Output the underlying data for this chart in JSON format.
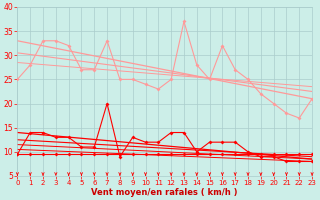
{
  "xlabel": "Vent moyen/en rafales ( km/h )",
  "xlim": [
    0,
    23
  ],
  "ylim": [
    5,
    40
  ],
  "yticks": [
    5,
    10,
    15,
    20,
    25,
    30,
    35,
    40
  ],
  "xticks": [
    0,
    1,
    2,
    3,
    4,
    5,
    6,
    7,
    8,
    9,
    10,
    11,
    12,
    13,
    14,
    15,
    16,
    17,
    18,
    19,
    20,
    21,
    22,
    23
  ],
  "background_color": "#cceee8",
  "grid_color": "#aacccc",
  "series_rafales": {
    "x": [
      0,
      1,
      2,
      3,
      4,
      5,
      6,
      7,
      8,
      9,
      10,
      11,
      12,
      13,
      14,
      15,
      16,
      17,
      18,
      19,
      20,
      21,
      22,
      23
    ],
    "y": [
      25,
      28,
      33,
      33,
      32,
      27,
      27,
      33,
      25,
      25,
      24,
      23,
      25,
      37,
      28,
      25,
      32,
      27,
      25,
      22,
      20,
      18,
      17,
      21
    ],
    "color": "#ff9999",
    "linewidth": 0.8,
    "markersize": 2.0
  },
  "trend_rafales1": {
    "x": [
      0,
      23
    ],
    "y": [
      33,
      21
    ],
    "color": "#ff9999",
    "linewidth": 0.9
  },
  "trend_rafales2": {
    "x": [
      0,
      23
    ],
    "y": [
      30.5,
      22.5
    ],
    "color": "#ff9999",
    "linewidth": 0.8
  },
  "trend_rafales3": {
    "x": [
      0,
      23
    ],
    "y": [
      28.5,
      23.5
    ],
    "color": "#ff9999",
    "linewidth": 0.7
  },
  "series_moyen": {
    "x": [
      0,
      1,
      2,
      3,
      4,
      5,
      6,
      7,
      8,
      9,
      10,
      11,
      12,
      13,
      14,
      15,
      16,
      17,
      18,
      19,
      20,
      21,
      22,
      23
    ],
    "y": [
      9.5,
      14,
      14,
      13,
      13,
      11,
      11,
      20,
      9,
      13,
      12,
      12,
      14,
      14,
      10,
      12,
      12,
      12,
      10,
      9,
      9,
      8,
      8,
      8
    ],
    "color": "#ff0000",
    "linewidth": 0.8,
    "markersize": 2.0
  },
  "series_base": {
    "x": [
      0,
      1,
      2,
      3,
      4,
      5,
      6,
      7,
      8,
      9,
      10,
      11,
      12,
      13,
      14,
      15,
      16,
      17,
      18,
      19,
      20,
      21,
      22,
      23
    ],
    "y": [
      9.5,
      9.5,
      9.5,
      9.5,
      9.5,
      9.5,
      9.5,
      9.5,
      9.5,
      9.5,
      9.5,
      9.5,
      9.5,
      9.5,
      9.5,
      9.5,
      9.5,
      9.5,
      9.5,
      9.5,
      9.5,
      9.5,
      9.5,
      9.5
    ],
    "color": "#ff0000",
    "linewidth": 0.8,
    "markersize": 2.0
  },
  "trend_moyen1": {
    "x": [
      0,
      23
    ],
    "y": [
      14,
      8.5
    ],
    "color": "#ff0000",
    "linewidth": 0.9
  },
  "trend_moyen2": {
    "x": [
      0,
      23
    ],
    "y": [
      12.5,
      9.0
    ],
    "color": "#ff0000",
    "linewidth": 0.8
  },
  "trend_moyen3": {
    "x": [
      0,
      23
    ],
    "y": [
      11.5,
      8.5
    ],
    "color": "#ff0000",
    "linewidth": 0.7
  },
  "trend_moyen4": {
    "x": [
      0,
      23
    ],
    "y": [
      10.5,
      8.0
    ],
    "color": "#ff0000",
    "linewidth": 0.7
  },
  "arrow_color": "#ff0000",
  "xlabel_color": "#cc0000",
  "tick_color": "#ff0000",
  "label_fontsize": 6,
  "tick_fontsize": 5.5
}
